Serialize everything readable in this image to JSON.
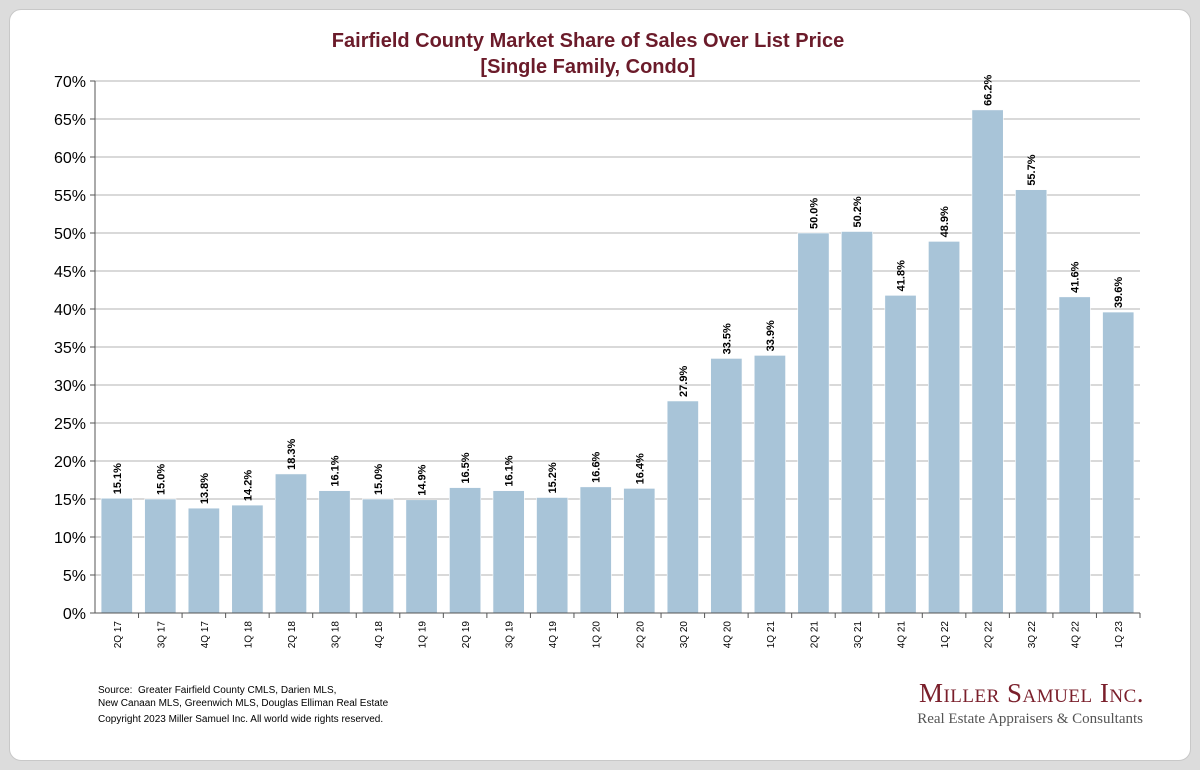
{
  "chart_data": {
    "type": "bar",
    "title": "Fairfield County Market Share of Sales Over List Price",
    "subtitle": "[Single Family, Condo]",
    "categories": [
      "2Q 17",
      "3Q 17",
      "4Q 17",
      "1Q 18",
      "2Q 18",
      "3Q 18",
      "4Q 18",
      "1Q 19",
      "2Q 19",
      "3Q 19",
      "4Q 19",
      "1Q 20",
      "2Q 20",
      "3Q 20",
      "4Q 20",
      "1Q 21",
      "2Q 21",
      "3Q 21",
      "4Q 21",
      "1Q 22",
      "2Q 22",
      "3Q 22",
      "4Q 22",
      "1Q 23"
    ],
    "values": [
      15.1,
      15.0,
      13.8,
      14.2,
      18.3,
      16.1,
      15.0,
      14.9,
      16.5,
      16.1,
      15.2,
      16.6,
      16.4,
      27.9,
      33.5,
      33.9,
      50.0,
      50.2,
      41.8,
      48.9,
      66.2,
      55.7,
      41.6,
      39.6
    ],
    "data_labels": [
      "15.1%",
      "15.0%",
      "13.8%",
      "14.2%",
      "18.3%",
      "16.1%",
      "15.0%",
      "14.9%",
      "16.5%",
      "16.1%",
      "15.2%",
      "16.6%",
      "16.4%",
      "27.9%",
      "33.5%",
      "33.9%",
      "50.0%",
      "50.2%",
      "41.8%",
      "48.9%",
      "66.2%",
      "55.7%",
      "41.6%",
      "39.6%"
    ],
    "yticks": [
      "0%",
      "5%",
      "10%",
      "15%",
      "20%",
      "25%",
      "30%",
      "35%",
      "40%",
      "45%",
      "50%",
      "55%",
      "60%",
      "65%",
      "70%"
    ],
    "ylim": [
      0,
      70
    ],
    "grid": true,
    "legend": "none",
    "bar_color": "#a8c4d8",
    "grid_color": "#b3b3b3",
    "title_color": "#6b1b2a"
  },
  "footer": {
    "source_lines": [
      "Source:  Greater Fairfield County CMLS, Darien MLS,",
      "New Canaan MLS, Greenwich MLS, Douglas Elliman Real Estate"
    ],
    "copyright": "Copyright 2023 Miller Samuel Inc.  All world wide rights reserved."
  },
  "logo": {
    "name": "Miller Samuel Inc.",
    "tagline": "Real Estate Appraisers & Consultants",
    "color": "#7a1f2b"
  }
}
